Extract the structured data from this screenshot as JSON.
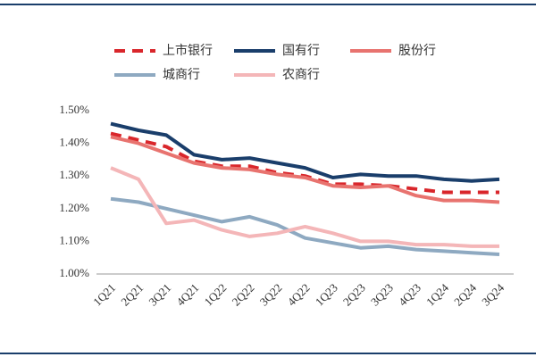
{
  "chart_data": {
    "type": "line",
    "categories": [
      "1Q21",
      "2Q21",
      "3Q21",
      "4Q21",
      "1Q22",
      "2Q22",
      "3Q22",
      "4Q22",
      "1Q23",
      "2Q23",
      "3Q23",
      "4Q23",
      "1Q24",
      "2Q24",
      "3Q24"
    ],
    "series": [
      {
        "name": "上市银行",
        "color": "#d9262b",
        "dashed": true,
        "values": [
          1.43,
          1.41,
          1.39,
          1.345,
          1.33,
          1.33,
          1.31,
          1.3,
          1.275,
          1.275,
          1.27,
          1.26,
          1.25,
          1.25,
          1.25
        ]
      },
      {
        "name": "国有行",
        "color": "#1a3e6b",
        "values": [
          1.46,
          1.44,
          1.425,
          1.365,
          1.35,
          1.355,
          1.34,
          1.325,
          1.295,
          1.305,
          1.3,
          1.3,
          1.29,
          1.285,
          1.29
        ]
      },
      {
        "name": "股份行",
        "color": "#e8736f",
        "values": [
          1.42,
          1.4,
          1.37,
          1.34,
          1.325,
          1.32,
          1.305,
          1.295,
          1.27,
          1.265,
          1.27,
          1.24,
          1.225,
          1.225,
          1.22
        ]
      },
      {
        "name": "城商行",
        "color": "#8ea9c1",
        "values": [
          1.23,
          1.22,
          1.2,
          1.18,
          1.16,
          1.175,
          1.15,
          1.11,
          1.095,
          1.08,
          1.085,
          1.075,
          1.07,
          1.065,
          1.06
        ]
      },
      {
        "name": "农商行",
        "color": "#f4b6b8",
        "values": [
          1.325,
          1.29,
          1.155,
          1.165,
          1.135,
          1.115,
          1.125,
          1.145,
          1.125,
          1.1,
          1.1,
          1.09,
          1.09,
          1.085,
          1.085
        ]
      }
    ],
    "ylim": [
      1.0,
      1.5
    ],
    "yticks": [
      {
        "value": 1.0,
        "label": "1.00%"
      },
      {
        "value": 1.1,
        "label": "1.10%"
      },
      {
        "value": 1.2,
        "label": "1.20%"
      },
      {
        "value": 1.3,
        "label": "1.30%"
      },
      {
        "value": 1.4,
        "label": "1.40%"
      },
      {
        "value": 1.5,
        "label": "1.50%"
      }
    ],
    "grid": false
  }
}
